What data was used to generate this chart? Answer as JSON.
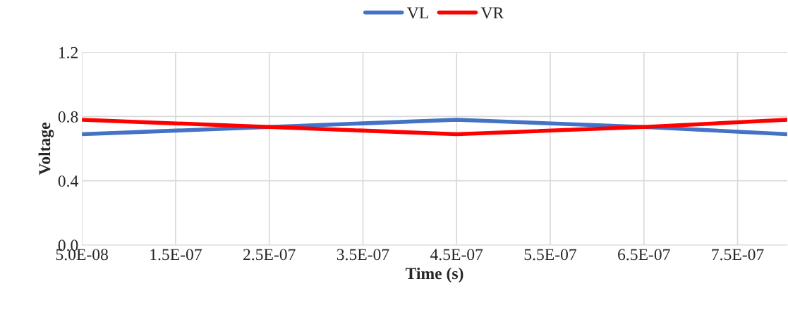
{
  "chart_data": {
    "type": "line",
    "xlabel": "Time (s)",
    "ylabel": "Voltage",
    "x": [
      5e-08,
      2.5e-07,
      4.5e-07,
      6.5e-07,
      8.03e-07
    ],
    "series": [
      {
        "name": "VL",
        "color": "#4472c4",
        "values": [
          0.69,
          0.735,
          0.78,
          0.735,
          0.69
        ]
      },
      {
        "name": "VR",
        "color": "#ff0000",
        "values": [
          0.78,
          0.735,
          0.69,
          0.735,
          0.78
        ]
      }
    ],
    "xlim": [
      5e-08,
      8.03e-07
    ],
    "xticks": [
      {
        "value": 5e-08,
        "label": "5.0E-08"
      },
      {
        "value": 1.5e-07,
        "label": "1.5E-07"
      },
      {
        "value": 2.5e-07,
        "label": "2.5E-07"
      },
      {
        "value": 3.5e-07,
        "label": "3.5E-07"
      },
      {
        "value": 4.5e-07,
        "label": "4.5E-07"
      },
      {
        "value": 5.5e-07,
        "label": "5.5E-07"
      },
      {
        "value": 6.5e-07,
        "label": "6.5E-07"
      },
      {
        "value": 7.5e-07,
        "label": "7.5E-07"
      }
    ],
    "ylim": [
      0,
      1.2
    ],
    "yticks": [
      {
        "value": 0,
        "label": "0.0"
      },
      {
        "value": 0.4,
        "label": "0.4"
      },
      {
        "value": 0.8,
        "label": "0.8"
      },
      {
        "value": 1.2,
        "label": "1.2"
      }
    ],
    "grid": true,
    "legend": "top",
    "marker": "none",
    "line_style": "solid"
  }
}
